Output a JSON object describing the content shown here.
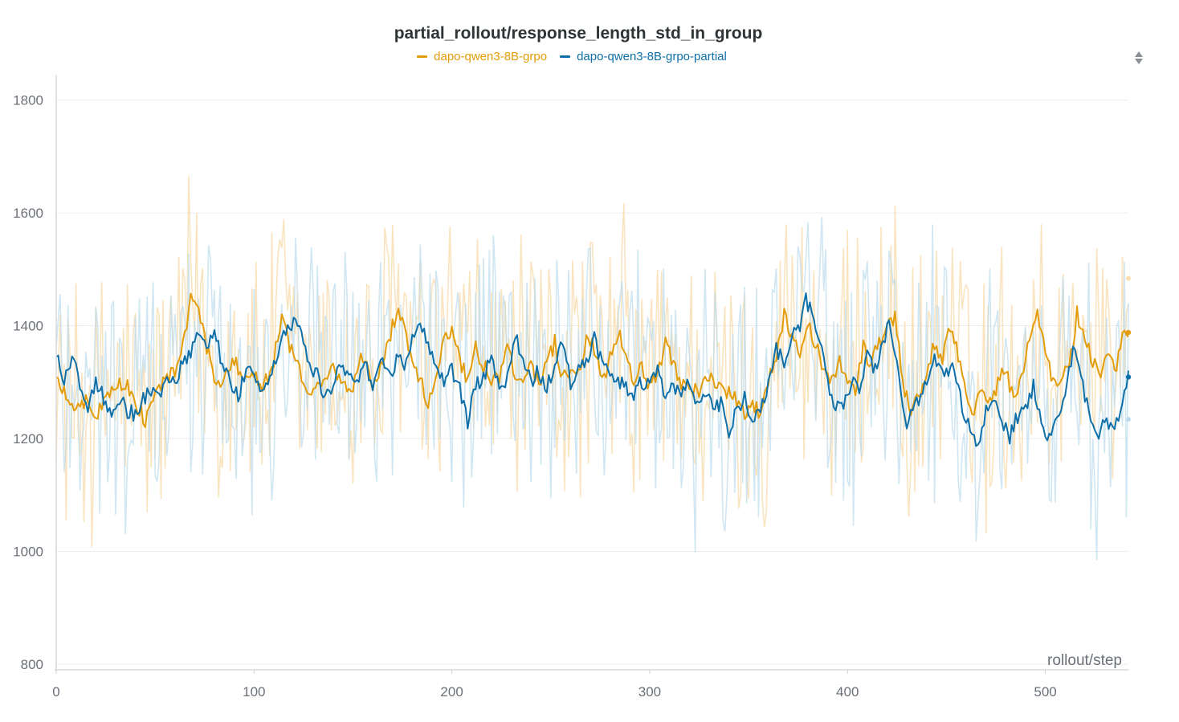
{
  "chart_data": {
    "type": "line",
    "title": "partial_rollout/response_length_std_in_group",
    "xlabel": "rollout/step",
    "ylabel": "",
    "xlim": [
      0,
      542
    ],
    "ylim": [
      790,
      1845
    ],
    "x_ticks": [
      0,
      100,
      200,
      300,
      400,
      500
    ],
    "y_ticks": [
      800,
      1000,
      1200,
      1400,
      1600,
      1800
    ],
    "grid": true,
    "legend_position": "top-center",
    "smoothing_note_visible": false,
    "series": [
      {
        "name": "dapo-qwen3-8B-grpo",
        "color": "#e39c0a",
        "raw_color": "#f9ddb0",
        "end_value_smoothed": 1388,
        "end_value_raw": 1484,
        "smoothed": [
          [
            0,
            1300
          ],
          [
            5,
            1280
          ],
          [
            10,
            1245
          ],
          [
            15,
            1270
          ],
          [
            20,
            1235
          ],
          [
            25,
            1285
          ],
          [
            30,
            1290
          ],
          [
            35,
            1300
          ],
          [
            40,
            1265
          ],
          [
            45,
            1230
          ],
          [
            50,
            1280
          ],
          [
            55,
            1300
          ],
          [
            60,
            1320
          ],
          [
            65,
            1380
          ],
          [
            68,
            1453
          ],
          [
            72,
            1420
          ],
          [
            76,
            1360
          ],
          [
            80,
            1310
          ],
          [
            85,
            1300
          ],
          [
            90,
            1340
          ],
          [
            95,
            1300
          ],
          [
            100,
            1320
          ],
          [
            105,
            1290
          ],
          [
            110,
            1340
          ],
          [
            114,
            1420
          ],
          [
            118,
            1360
          ],
          [
            122,
            1330
          ],
          [
            126,
            1300
          ],
          [
            130,
            1280
          ],
          [
            135,
            1300
          ],
          [
            140,
            1330
          ],
          [
            145,
            1300
          ],
          [
            150,
            1290
          ],
          [
            155,
            1350
          ],
          [
            160,
            1300
          ],
          [
            165,
            1330
          ],
          [
            170,
            1400
          ],
          [
            173,
            1430
          ],
          [
            177,
            1380
          ],
          [
            181,
            1330
          ],
          [
            185,
            1300
          ],
          [
            188,
            1250
          ],
          [
            192,
            1320
          ],
          [
            196,
            1370
          ],
          [
            200,
            1400
          ],
          [
            204,
            1340
          ],
          [
            208,
            1300
          ],
          [
            212,
            1360
          ],
          [
            216,
            1330
          ],
          [
            220,
            1300
          ],
          [
            224,
            1310
          ],
          [
            228,
            1360
          ],
          [
            232,
            1320
          ],
          [
            236,
            1310
          ],
          [
            240,
            1340
          ],
          [
            244,
            1290
          ],
          [
            248,
            1330
          ],
          [
            252,
            1370
          ],
          [
            256,
            1300
          ],
          [
            260,
            1330
          ],
          [
            264,
            1310
          ],
          [
            268,
            1380
          ],
          [
            272,
            1360
          ],
          [
            276,
            1300
          ],
          [
            280,
            1340
          ],
          [
            284,
            1390
          ],
          [
            288,
            1360
          ],
          [
            292,
            1300
          ],
          [
            296,
            1330
          ],
          [
            300,
            1290
          ],
          [
            304,
            1320
          ],
          [
            308,
            1370
          ],
          [
            312,
            1330
          ],
          [
            316,
            1290
          ],
          [
            320,
            1300
          ],
          [
            324,
            1280
          ],
          [
            328,
            1310
          ],
          [
            332,
            1300
          ],
          [
            336,
            1290
          ],
          [
            340,
            1280
          ],
          [
            344,
            1270
          ],
          [
            348,
            1240
          ],
          [
            352,
            1260
          ],
          [
            356,
            1240
          ],
          [
            360,
            1300
          ],
          [
            364,
            1350
          ],
          [
            368,
            1420
          ],
          [
            372,
            1380
          ],
          [
            376,
            1350
          ],
          [
            380,
            1400
          ],
          [
            384,
            1370
          ],
          [
            388,
            1320
          ],
          [
            392,
            1300
          ],
          [
            396,
            1340
          ],
          [
            400,
            1300
          ],
          [
            404,
            1280
          ],
          [
            408,
            1360
          ],
          [
            412,
            1330
          ],
          [
            416,
            1370
          ],
          [
            420,
            1390
          ],
          [
            424,
            1420
          ],
          [
            428,
            1300
          ],
          [
            432,
            1250
          ],
          [
            436,
            1270
          ],
          [
            440,
            1320
          ],
          [
            444,
            1370
          ],
          [
            448,
            1340
          ],
          [
            452,
            1400
          ],
          [
            456,
            1350
          ],
          [
            460,
            1280
          ],
          [
            464,
            1250
          ],
          [
            468,
            1280
          ],
          [
            472,
            1260
          ],
          [
            476,
            1300
          ],
          [
            480,
            1320
          ],
          [
            484,
            1270
          ],
          [
            488,
            1300
          ],
          [
            492,
            1380
          ],
          [
            496,
            1420
          ],
          [
            500,
            1360
          ],
          [
            504,
            1300
          ],
          [
            508,
            1310
          ],
          [
            512,
            1330
          ],
          [
            516,
            1420
          ],
          [
            520,
            1380
          ],
          [
            524,
            1340
          ],
          [
            528,
            1310
          ],
          [
            532,
            1350
          ],
          [
            536,
            1330
          ],
          [
            540,
            1400
          ],
          [
            542,
            1388
          ]
        ]
      },
      {
        "name": "dapo-qwen3-8B-grpo-partial",
        "color": "#0f6fa8",
        "raw_color": "#bcdcec",
        "end_value_smoothed": 1309,
        "end_value_raw": 1234,
        "smoothed": [
          [
            0,
            1345
          ],
          [
            4,
            1300
          ],
          [
            8,
            1350
          ],
          [
            12,
            1290
          ],
          [
            16,
            1250
          ],
          [
            20,
            1300
          ],
          [
            24,
            1270
          ],
          [
            28,
            1240
          ],
          [
            32,
            1270
          ],
          [
            36,
            1250
          ],
          [
            40,
            1240
          ],
          [
            44,
            1270
          ],
          [
            48,
            1290
          ],
          [
            52,
            1270
          ],
          [
            56,
            1310
          ],
          [
            60,
            1290
          ],
          [
            64,
            1340
          ],
          [
            68,
            1350
          ],
          [
            72,
            1380
          ],
          [
            76,
            1360
          ],
          [
            80,
            1400
          ],
          [
            84,
            1330
          ],
          [
            88,
            1300
          ],
          [
            92,
            1270
          ],
          [
            96,
            1330
          ],
          [
            100,
            1300
          ],
          [
            104,
            1290
          ],
          [
            108,
            1310
          ],
          [
            112,
            1350
          ],
          [
            116,
            1390
          ],
          [
            120,
            1410
          ],
          [
            124,
            1380
          ],
          [
            128,
            1330
          ],
          [
            132,
            1310
          ],
          [
            136,
            1270
          ],
          [
            140,
            1290
          ],
          [
            144,
            1340
          ],
          [
            148,
            1300
          ],
          [
            152,
            1300
          ],
          [
            156,
            1340
          ],
          [
            160,
            1290
          ],
          [
            164,
            1350
          ],
          [
            168,
            1310
          ],
          [
            172,
            1340
          ],
          [
            176,
            1330
          ],
          [
            180,
            1380
          ],
          [
            184,
            1410
          ],
          [
            188,
            1370
          ],
          [
            192,
            1340
          ],
          [
            196,
            1300
          ],
          [
            200,
            1320
          ],
          [
            204,
            1290
          ],
          [
            208,
            1230
          ],
          [
            212,
            1290
          ],
          [
            216,
            1310
          ],
          [
            220,
            1350
          ],
          [
            224,
            1290
          ],
          [
            228,
            1300
          ],
          [
            232,
            1380
          ],
          [
            236,
            1340
          ],
          [
            240,
            1300
          ],
          [
            244,
            1320
          ],
          [
            248,
            1290
          ],
          [
            252,
            1330
          ],
          [
            256,
            1370
          ],
          [
            260,
            1300
          ],
          [
            264,
            1320
          ],
          [
            268,
            1340
          ],
          [
            272,
            1380
          ],
          [
            276,
            1330
          ],
          [
            280,
            1320
          ],
          [
            284,
            1300
          ],
          [
            288,
            1290
          ],
          [
            292,
            1280
          ],
          [
            296,
            1300
          ],
          [
            300,
            1290
          ],
          [
            304,
            1320
          ],
          [
            308,
            1280
          ],
          [
            312,
            1300
          ],
          [
            316,
            1270
          ],
          [
            320,
            1300
          ],
          [
            324,
            1260
          ],
          [
            328,
            1280
          ],
          [
            332,
            1250
          ],
          [
            336,
            1260
          ],
          [
            340,
            1210
          ],
          [
            344,
            1250
          ],
          [
            348,
            1270
          ],
          [
            352,
            1240
          ],
          [
            356,
            1250
          ],
          [
            360,
            1300
          ],
          [
            364,
            1360
          ],
          [
            368,
            1340
          ],
          [
            372,
            1380
          ],
          [
            376,
            1400
          ],
          [
            379,
            1450
          ],
          [
            382,
            1420
          ],
          [
            386,
            1380
          ],
          [
            390,
            1300
          ],
          [
            394,
            1260
          ],
          [
            398,
            1250
          ],
          [
            402,
            1300
          ],
          [
            406,
            1280
          ],
          [
            410,
            1360
          ],
          [
            414,
            1320
          ],
          [
            418,
            1380
          ],
          [
            422,
            1400
          ],
          [
            426,
            1300
          ],
          [
            430,
            1230
          ],
          [
            434,
            1250
          ],
          [
            438,
            1290
          ],
          [
            442,
            1330
          ],
          [
            446,
            1340
          ],
          [
            450,
            1310
          ],
          [
            454,
            1330
          ],
          [
            458,
            1260
          ],
          [
            462,
            1210
          ],
          [
            466,
            1180
          ],
          [
            470,
            1250
          ],
          [
            474,
            1260
          ],
          [
            478,
            1230
          ],
          [
            482,
            1200
          ],
          [
            486,
            1240
          ],
          [
            490,
            1260
          ],
          [
            494,
            1290
          ],
          [
            498,
            1230
          ],
          [
            502,
            1200
          ],
          [
            506,
            1230
          ],
          [
            510,
            1290
          ],
          [
            514,
            1360
          ],
          [
            518,
            1300
          ],
          [
            522,
            1250
          ],
          [
            526,
            1200
          ],
          [
            530,
            1240
          ],
          [
            534,
            1220
          ],
          [
            538,
            1250
          ],
          [
            542,
            1309
          ]
        ]
      }
    ]
  }
}
